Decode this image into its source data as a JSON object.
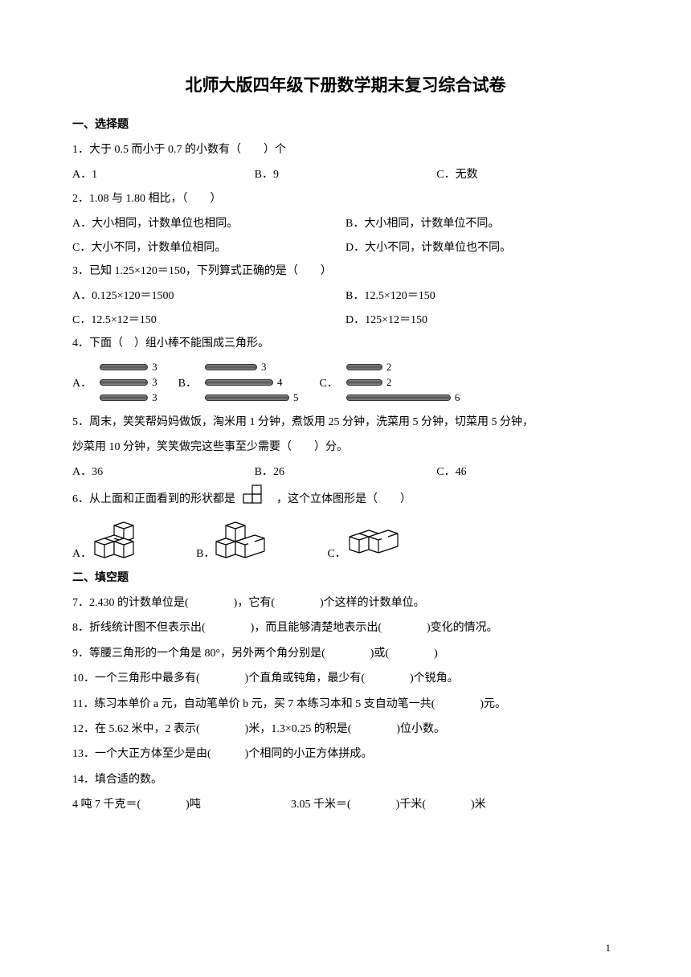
{
  "title": "北师大版四年级下册数学期末复习综合试卷",
  "section1": "一、选择题",
  "section2": "二、填空题",
  "q1": {
    "text": "1．大于 0.5 而小于 0.7 的小数有（　　）个",
    "a": "A．1",
    "b": "B．9",
    "c": "C．无数"
  },
  "q2": {
    "text": "2．1.08 与 1.80 相比，（　　）",
    "a": "A．大小相同，计数单位也相同。",
    "b": "B．大小相同，计数单位不同。",
    "c": "C．大小不同，计数单位相同。",
    "d": "D．大小不同，计数单位也不同。"
  },
  "q3": {
    "text": "3．已知 1.25×120＝150，下列算式正确的是（　　）",
    "a": "A．0.125×120＝1500",
    "b": "B．12.5×120＝150",
    "c": "C．12.5×12＝150",
    "d": "D．125×12＝150"
  },
  "q4": {
    "text": "4．下面（　）组小棒不能围成三角形。",
    "A": {
      "letter": "A．",
      "sticks": [
        [
          60,
          "3"
        ],
        [
          60,
          "3"
        ],
        [
          60,
          "3"
        ]
      ]
    },
    "B": {
      "letter": "B．",
      "sticks": [
        [
          65,
          "3"
        ],
        [
          85,
          "4"
        ],
        [
          105,
          "5"
        ]
      ]
    },
    "C": {
      "letter": "C．",
      "sticks": [
        [
          45,
          "2"
        ],
        [
          45,
          "2"
        ],
        [
          130,
          "6"
        ]
      ]
    }
  },
  "q5": {
    "text": "5．周末，笑笑帮妈妈做饭，淘米用 1 分钟，煮饭用 25 分钟，洗菜用 5 分钟，切菜用 5 分钟，",
    "text2": "炒菜用 10 分钟，笑笑做完这些事至少需要（　　）分。",
    "a": "A．36",
    "b": "B．26",
    "c": "C．46"
  },
  "q6": {
    "text_before": "6．从上面和正面看到的形状都是",
    "text_after": "，这个立体图形是（　　）",
    "a": "A．",
    "b": "B．",
    "c": "C．"
  },
  "q7": "7．2.430 的计数单位是(　　　　)，它有(　　　　)个这样的计数单位。",
  "q8": "8．折线统计图不但表示出(　　　　)，而且能够清楚地表示出(　　　　)变化的情况。",
  "q9": "9．等腰三角形的一个角是 80°，另外两个角分别是(　　　　)或(　　　　)",
  "q10": "10．一个三角形中最多有(　　　　)个直角或钝角，最少有(　　　　)个锐角。",
  "q11": "11．练习本单价 a 元，自动笔单价 b 元，买 7 本练习本和 5 支自动笔一共(　　　　)元。",
  "q12": "12．在 5.62 米中，2 表示(　　　　)米，1.3×0.25 的积是(　　　　)位小数。",
  "q13": "13．一个大正方体至少是由(　　　)个相同的小正方体拼成。",
  "q14": "14．填合适的数。",
  "q14a": "4 吨 7 千克＝(　　　　)吨",
  "q14b": "3.05 千米＝(　　　　)千米(　　　　)米",
  "pageNum": "1"
}
